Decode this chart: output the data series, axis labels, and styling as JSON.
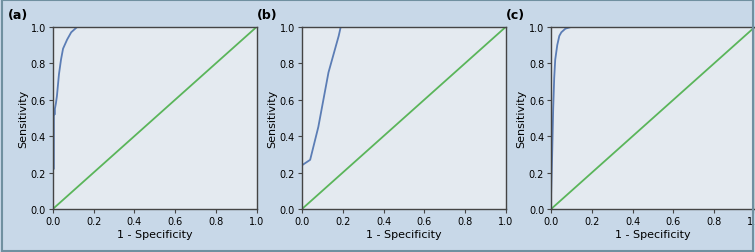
{
  "fig_width": 7.55,
  "fig_height": 2.53,
  "dpi": 100,
  "outer_bg": "#c8d8e8",
  "plot_bg_color": "#e4eaf0",
  "roc_color": "#5b7db5",
  "diag_color": "#5ab55a",
  "panel_labels": [
    "(a)",
    "(b)",
    "(c)"
  ],
  "xlabel": "1 - Specificity",
  "ylabel": "Sensitivity",
  "xlim": [
    0.0,
    1.0
  ],
  "ylim": [
    0.0,
    1.0
  ],
  "xticks": [
    0.0,
    0.2,
    0.4,
    0.6,
    0.8,
    1.0
  ],
  "yticks": [
    0.0,
    0.2,
    0.4,
    0.6,
    0.8,
    1.0
  ],
  "roc_a_x": [
    0.0,
    0.0,
    0.005,
    0.005,
    0.01,
    0.01,
    0.015,
    0.02,
    0.025,
    0.03,
    0.04,
    0.05,
    0.07,
    0.09,
    0.12,
    1.0
  ],
  "roc_a_y": [
    0.0,
    0.22,
    0.22,
    0.52,
    0.52,
    0.55,
    0.58,
    0.62,
    0.68,
    0.74,
    0.82,
    0.88,
    0.93,
    0.97,
    1.0,
    1.0
  ],
  "roc_b_x": [
    0.0,
    0.0,
    0.04,
    0.08,
    0.13,
    0.18,
    0.19,
    1.0
  ],
  "roc_b_y": [
    0.0,
    0.24,
    0.27,
    0.45,
    0.75,
    0.95,
    1.0,
    1.0
  ],
  "roc_c_x": [
    0.0,
    0.0,
    0.005,
    0.01,
    0.015,
    0.02,
    0.03,
    0.04,
    0.05,
    0.07,
    0.1,
    0.13,
    1.0
  ],
  "roc_c_y": [
    0.0,
    0.08,
    0.3,
    0.55,
    0.72,
    0.82,
    0.9,
    0.95,
    0.97,
    0.99,
    1.0,
    1.0,
    1.0
  ],
  "spine_color": "#444444",
  "tick_fontsize": 7,
  "label_fontsize": 8,
  "panel_fontsize": 9
}
